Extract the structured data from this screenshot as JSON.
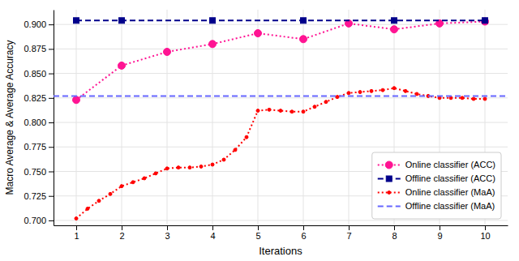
{
  "chart_data": {
    "type": "line",
    "xlabel": "Iterations",
    "ylabel": "Macro Average & Average Accuracy",
    "xlim": [
      0.5,
      10.5
    ],
    "ylim": [
      0.695,
      0.915
    ],
    "xticks": [
      1,
      2,
      3,
      4,
      5,
      6,
      7,
      8,
      9,
      10
    ],
    "yticks": [
      {
        "value": 0.7,
        "label": "0.700"
      },
      0.725,
      {
        "value": 0.75,
        "label": "0.750"
      },
      0.775,
      {
        "value": 0.8,
        "label": "0.800"
      },
      0.825,
      {
        "value": 0.85,
        "label": "0.850"
      },
      0.875,
      {
        "value": 0.9,
        "label": "0.900"
      }
    ],
    "grid": true,
    "legend": "lower right",
    "series": [
      {
        "name": "Online classifier (ACC)",
        "type": "line",
        "color": "#FF1493",
        "line_style": "dotted",
        "marker": "circle",
        "x": [
          1,
          2,
          3,
          4,
          5,
          6,
          7,
          8,
          9,
          10
        ],
        "values": [
          0.823,
          0.858,
          0.872,
          0.88,
          0.891,
          0.885,
          0.901,
          0.895,
          0.901,
          0.903
        ]
      },
      {
        "name": "Offline classifier (ACC)",
        "type": "line",
        "color": "#00008B",
        "line_style": "dashed",
        "marker": "square",
        "x": [
          1,
          2,
          4,
          6,
          8,
          10
        ],
        "values": [
          0.904,
          0.904,
          0.904,
          0.904,
          0.904,
          0.904
        ]
      },
      {
        "name": "Online classifier (MaA)",
        "type": "line",
        "color": "#FF0000",
        "line_style": "dotted",
        "marker": "point",
        "x": [
          1,
          1.25,
          1.5,
          1.75,
          2,
          2.25,
          2.5,
          2.75,
          3,
          3.25,
          3.5,
          3.75,
          4,
          4.25,
          4.5,
          4.75,
          5,
          5.25,
          5.5,
          5.75,
          6,
          6.25,
          6.5,
          6.75,
          7,
          7.25,
          7.5,
          7.75,
          8,
          8.25,
          8.5,
          8.75,
          9,
          9.25,
          9.5,
          9.75,
          10
        ],
        "values": [
          0.702,
          0.712,
          0.72,
          0.727,
          0.735,
          0.739,
          0.743,
          0.748,
          0.753,
          0.754,
          0.754,
          0.755,
          0.757,
          0.762,
          0.772,
          0.785,
          0.812,
          0.813,
          0.812,
          0.811,
          0.811,
          0.816,
          0.821,
          0.826,
          0.83,
          0.831,
          0.832,
          0.833,
          0.835,
          0.832,
          0.829,
          0.827,
          0.825,
          0.825,
          0.825,
          0.824,
          0.824
        ]
      },
      {
        "name": "Offline classifier (MaA)",
        "type": "hline",
        "color": "#6666FF",
        "line_style": "dashed",
        "values": [
          0.827
        ]
      }
    ]
  }
}
